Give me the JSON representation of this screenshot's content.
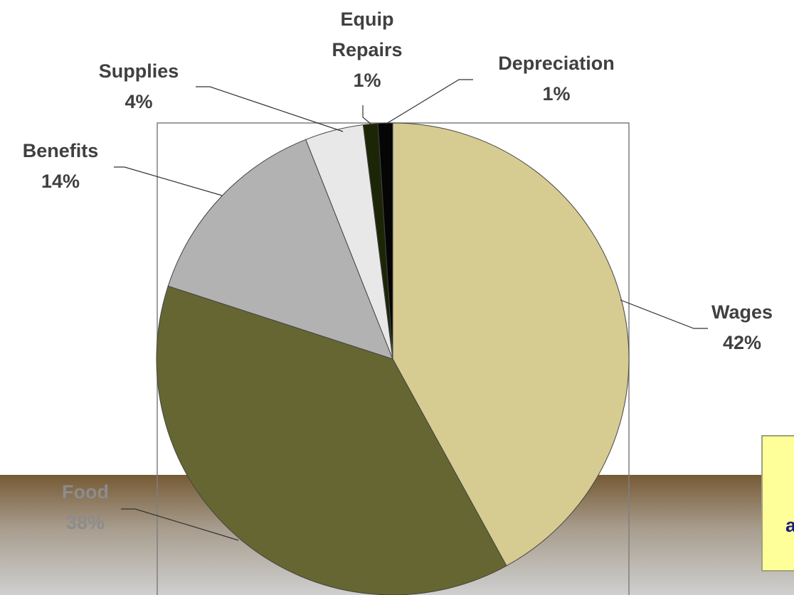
{
  "chart_data": {
    "type": "pie",
    "categories": [
      "Wages",
      "Food",
      "Benefits",
      "Supplies",
      "Equip Repairs",
      "Depreciation"
    ],
    "values": [
      42,
      38,
      14,
      4,
      1,
      1
    ],
    "value_labels": [
      "42%",
      "38%",
      "14%",
      "4%",
      "1%",
      "1%"
    ],
    "colors": [
      "#d6cb91",
      "#666633",
      "#b2b2b2",
      "#e8e8e8",
      "#1c2606",
      "#050505"
    ],
    "annotation": "a"
  }
}
